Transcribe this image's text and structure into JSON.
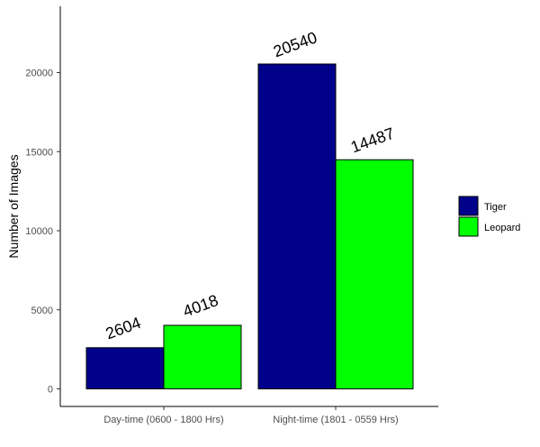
{
  "chart_data": {
    "type": "bar",
    "title": "",
    "xlabel": "",
    "ylabel": "Number of Images",
    "categories": [
      "Day-time (0600 - 1800 Hrs)",
      "Night-time (1801 - 0559 Hrs)"
    ],
    "series": [
      {
        "name": "Tiger",
        "color": "#00008B",
        "values": [
          2604,
          20540
        ]
      },
      {
        "name": "Leopard",
        "color": "#00FF00",
        "values": [
          4018,
          14487
        ]
      }
    ],
    "data_labels": [
      [
        "2604",
        "20540"
      ],
      [
        "4018",
        "14487"
      ]
    ],
    "ylim": [
      0,
      24000
    ],
    "yticks": [
      0,
      5000,
      10000,
      15000,
      20000
    ],
    "ytick_labels": [
      "0",
      "5000",
      "10000",
      "15000",
      "20000"
    ],
    "grid": false,
    "legend_position": "right"
  }
}
